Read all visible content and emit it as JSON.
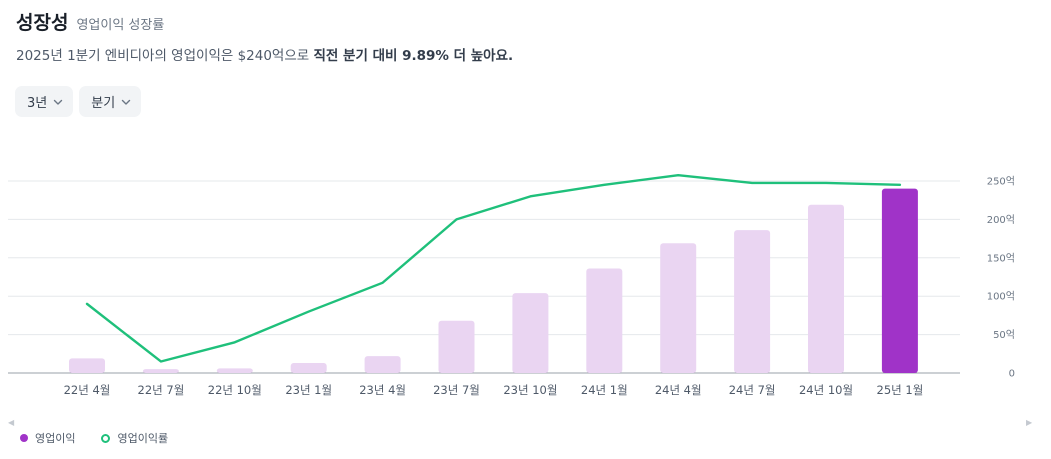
{
  "header": {
    "title": "성장성",
    "subtitle": "영업이익 성장률"
  },
  "summary": {
    "lead": "2025년 1분기 엔비디아의 영업이익은 $240억으로 ",
    "emphasis": "직전 분기 대비 9.89% 더 높아요."
  },
  "filters": [
    {
      "label": "3년",
      "icon": "chevron-down-icon"
    },
    {
      "label": "분기",
      "icon": "chevron-down-icon"
    }
  ],
  "colors": {
    "bar": "#ead5f2",
    "bar_highlight": "#a033c8",
    "line": "#1fc07b",
    "grid": "#e5e8eb",
    "axis": "#9aa1a9"
  },
  "chart_data": {
    "type": "bar",
    "categories": [
      "22년 4월",
      "22년 7월",
      "22년 10월",
      "23년 1월",
      "23년 4월",
      "23년 7월",
      "23년 10월",
      "24년 1월",
      "24년 4월",
      "24년 7월",
      "24년 10월",
      "25년 1월"
    ],
    "series": [
      {
        "name": "영업이익",
        "type": "bar",
        "axis": "right",
        "highlight_last": true,
        "values": [
          19,
          5,
          6,
          13,
          22,
          68,
          104,
          136,
          169,
          186,
          219,
          240
        ]
      },
      {
        "name": "영업이익률",
        "type": "line",
        "axis": "hidden",
        "values": [
          36,
          6,
          16,
          32,
          47,
          80,
          92,
          98,
          103,
          99,
          99,
          98
        ]
      }
    ],
    "y_right": {
      "ticks": [
        0,
        50,
        100,
        150,
        200,
        250
      ],
      "tick_labels": [
        "0",
        "50억",
        "100억",
        "150억",
        "200억",
        "250억"
      ],
      "ylim": [
        0,
        250
      ]
    },
    "line_ylim": [
      0,
      100
    ],
    "grid": true,
    "legend_position": "bottom-left"
  }
}
